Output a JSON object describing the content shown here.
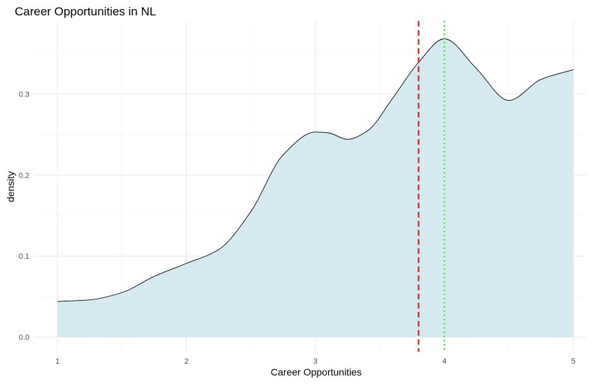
{
  "chart_data": {
    "type": "area",
    "title": "Career Opportunities in  NL",
    "xlabel": "Career Opportunities",
    "ylabel": "density",
    "xlim": [
      0.82,
      5.1
    ],
    "ylim": [
      -0.018,
      0.39
    ],
    "x_ticks": [
      1,
      2,
      3,
      4,
      5
    ],
    "x_tick_labels": [
      "1",
      "2",
      "3",
      "4",
      "5"
    ],
    "y_ticks": [
      0.0,
      0.1,
      0.2,
      0.3
    ],
    "y_tick_labels": [
      "0.0",
      "0.1",
      "0.2",
      "0.3"
    ],
    "grid": true,
    "series": [
      {
        "x": [
          1.0,
          1.25,
          1.5,
          1.75,
          2.0,
          2.25,
          2.5,
          2.75,
          3.0,
          3.1,
          3.25,
          3.4,
          3.6,
          3.8,
          4.0,
          4.25,
          4.5,
          4.75,
          5.0
        ],
        "y": [
          0.044,
          0.046,
          0.055,
          0.075,
          0.091,
          0.108,
          0.155,
          0.225,
          0.253,
          0.252,
          0.244,
          0.254,
          0.295,
          0.339,
          0.368,
          0.331,
          0.292,
          0.318,
          0.33
        ],
        "fill_color": "#d5e9f1",
        "line_color": "#000000"
      }
    ],
    "reference_lines": [
      {
        "x": 3.8,
        "color": "#e31a1c",
        "style": "dashed"
      },
      {
        "x": 4.0,
        "color": "#2ee82e",
        "style": "dotted"
      }
    ]
  }
}
